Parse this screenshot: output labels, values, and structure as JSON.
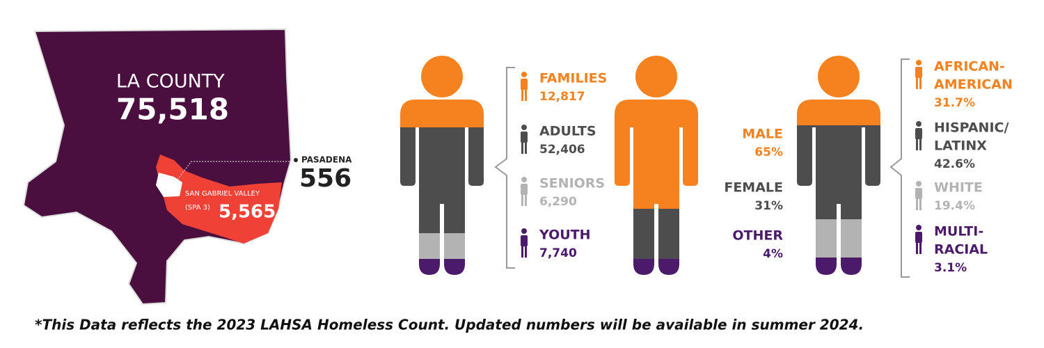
{
  "map": {
    "title": "LA COUNTY",
    "total": "75,518",
    "region_name": "SAN GABRIEL VALLEY",
    "region_sub": "(SPA 3)",
    "region_value": "5,565",
    "city": "PASADENA",
    "city_value": "556"
  },
  "age": [
    {
      "label_lines": [
        "FAMILIES"
      ],
      "value": "12,817",
      "color": "#f5821f"
    },
    {
      "label_lines": [
        "ADULTS"
      ],
      "value": "52,406",
      "color": "#4d4d4d"
    },
    {
      "label_lines": [
        "SENIORS"
      ],
      "value": "6,290",
      "color": "#b3b3b3"
    },
    {
      "label_lines": [
        "YOUTH"
      ],
      "value": "7,740",
      "color": "#4b1a6b"
    }
  ],
  "gender": [
    {
      "label_lines": [
        "MALE"
      ],
      "value": "65%",
      "color": "#f5821f"
    },
    {
      "label_lines": [
        "FEMALE"
      ],
      "value": "31%",
      "color": "#4d4d4d"
    },
    {
      "label_lines": [
        "OTHER"
      ],
      "value": "4%",
      "color": "#4b1a6b"
    }
  ],
  "race": [
    {
      "label_lines": [
        "AFRICAN-",
        "AMERICAN"
      ],
      "value": "31.7%",
      "color": "#f5821f"
    },
    {
      "label_lines": [
        "HISPANIC/",
        "LATINX"
      ],
      "value": "42.6%",
      "color": "#4d4d4d"
    },
    {
      "label_lines": [
        "WHITE"
      ],
      "value": "19.4%",
      "color": "#b3b3b3"
    },
    {
      "label_lines": [
        "MULTI-",
        "RACIAL"
      ],
      "value": "3.1%",
      "color": "#4b1a6b"
    }
  ],
  "footnote": "*This Data reflects the 2023 LAHSA Homeless Count. Updated numbers will be available in summer 2024."
}
